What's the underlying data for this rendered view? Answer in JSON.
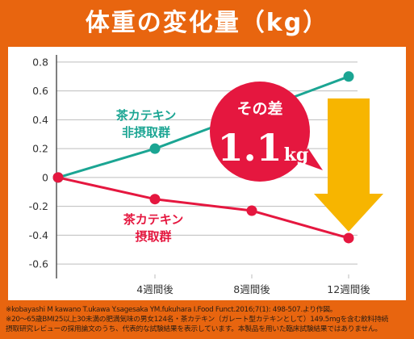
{
  "colors": {
    "background": "#E8650F",
    "arrow": "#F7B500",
    "annotation": "#E5173F",
    "grid": "#BDBDBD",
    "axis": "#555555",
    "text": "#333333"
  },
  "chart_data": {
    "type": "line",
    "title": "体重の変化量（kg）",
    "xlabel": "",
    "ylabel": "",
    "categories": [
      "",
      "4週間後",
      "8週間後",
      "12週間後"
    ],
    "ylim": [
      -0.7,
      0.85
    ],
    "yticks": [
      0.8,
      0.6,
      0.4,
      0.2,
      0,
      -0.2,
      -0.4,
      -0.6
    ],
    "grid": true,
    "series": [
      {
        "name_lines": [
          "茶カテキン",
          "非摂取群"
        ],
        "color": "#1BA593",
        "values": [
          0,
          0.2,
          0.45,
          0.7
        ]
      },
      {
        "name_lines": [
          "茶カテキン",
          "摂取群"
        ],
        "color": "#E5173F",
        "values": [
          0,
          -0.15,
          -0.23,
          -0.42
        ]
      }
    ],
    "annotation": {
      "prefix": "その差",
      "value": "1.1",
      "unit": "kg"
    }
  },
  "footnotes": [
    "※kobayashi M kawano T.ukawa Y.sagesaka YM.fukuhara I.Food Funct.2016;7(1): 498-507.より作図。",
    "※20〜65歳BMI25以上30未満の肥満気味の男女124名・茶カテキン（ガレート型カテキンとして）149.5mgを含む飲料持続",
    "摂取研究レビューの採用論文のうち、代表的な試験結果を表示しています。本製品を用いた臨床試験結果ではありません。"
  ]
}
